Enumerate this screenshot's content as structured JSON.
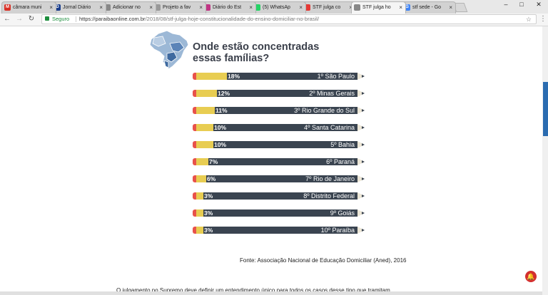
{
  "browser": {
    "tabs": [
      {
        "title": "câmara muni",
        "fav_color": "#d93025",
        "fav_glyph": "M"
      },
      {
        "title": "Jornal Diário",
        "fav_color": "#1a3e8c",
        "fav_glyph": "D"
      },
      {
        "title": "Adicionar no",
        "fav_color": "#888888",
        "fav_glyph": ""
      },
      {
        "title": "Projeto a fav",
        "fav_color": "#999999",
        "fav_glyph": ""
      },
      {
        "title": "Diário do Est",
        "fav_color": "#c13584",
        "fav_glyph": ""
      },
      {
        "title": "(5) WhatsAp",
        "fav_color": "#25d366",
        "fav_glyph": ""
      },
      {
        "title": "STF julga co",
        "fav_color": "#e53935",
        "fav_glyph": ""
      },
      {
        "title": "STF julga ho",
        "fav_color": "#888888",
        "fav_glyph": ""
      },
      {
        "title": "stf sede - Go",
        "fav_color": "#4285f4",
        "fav_glyph": "G"
      }
    ],
    "active_tab": 7,
    "secure_label": "Seguro",
    "url_host": "https://paraibaonline.com.br",
    "url_path": "/2018/08/stf-julga-hoje-constitucionalidade-do-ensino-domiciliar-no-brasil/"
  },
  "infographic": {
    "heading_line1": "Onde estão concentradas",
    "heading_line2": "essas famílias?",
    "accent_color": "#e8cd52",
    "bar_color": "#3a4450",
    "rows": [
      {
        "pct": "18%",
        "value": 18,
        "label": "1º São Paulo"
      },
      {
        "pct": "12%",
        "value": 12,
        "label": "2º Minas Gerais"
      },
      {
        "pct": "11%",
        "value": 11,
        "label": "3º Rio Grande do Sul"
      },
      {
        "pct": "10%",
        "value": 10,
        "label": "4º Santa Catarina"
      },
      {
        "pct": "10%",
        "value": 10,
        "label": "5º Bahia"
      },
      {
        "pct": "7%",
        "value": 7,
        "label": "6º Paraná"
      },
      {
        "pct": "6%",
        "value": 6,
        "label": "7º Rio de Janeiro"
      },
      {
        "pct": "3%",
        "value": 3,
        "label": "8º Distrito Federal"
      },
      {
        "pct": "3%",
        "value": 3,
        "label": "9º Goiás"
      },
      {
        "pct": "3%",
        "value": 3,
        "label": "10º Paraíba"
      }
    ],
    "source": "Fonte: Associação Nacional de Educação Domiciliar (Aned), 2016"
  },
  "article": {
    "partial_line": "O julgamento no Supremo deve definir um entendimento único para todos os casos desse tipo que tramitam"
  },
  "notification": {
    "glyph": "🔔"
  }
}
